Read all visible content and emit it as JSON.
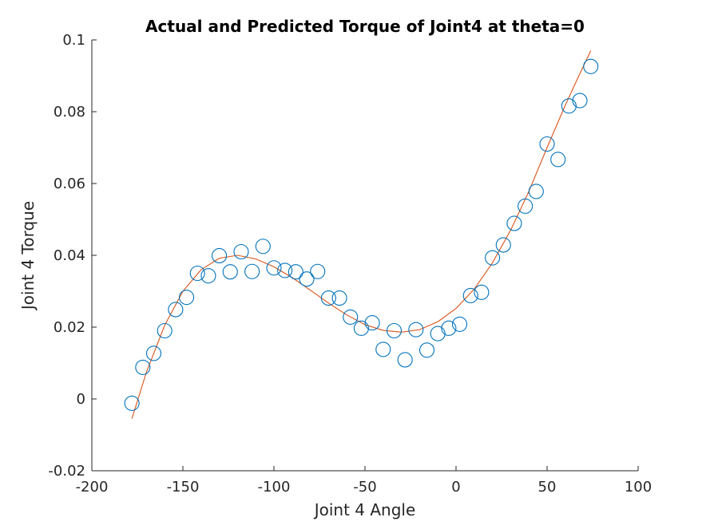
{
  "chart_data": {
    "type": "scatter",
    "title": "Actual and Predicted Torque of Joint4 at theta=0",
    "xlabel": "Joint 4 Angle",
    "ylabel": "Joint 4 Torque",
    "xlim": [
      -200,
      100
    ],
    "ylim": [
      -0.02,
      0.1
    ],
    "x_ticks": [
      "-200",
      "-150",
      "-100",
      "-50",
      "0",
      "50",
      "100"
    ],
    "y_ticks": [
      "-0.02",
      "0",
      "0.02",
      "0.04",
      "0.06",
      "0.08",
      "0.1"
    ],
    "grid": false,
    "legend": "none",
    "colors": {
      "actual": "#0072BD",
      "predicted": "#D95319"
    },
    "series": [
      {
        "kind": "scatter",
        "marker": "circle",
        "points": [
          [
            -178,
            -0.0012
          ],
          [
            -172,
            0.0088
          ],
          [
            -166,
            0.0127
          ],
          [
            -160,
            0.019
          ],
          [
            -154,
            0.0249
          ],
          [
            -148,
            0.0283
          ],
          [
            -142,
            0.035
          ],
          [
            -136,
            0.0343
          ],
          [
            -130,
            0.0399
          ],
          [
            -124,
            0.0354
          ],
          [
            -118,
            0.041
          ],
          [
            -112,
            0.0355
          ],
          [
            -106,
            0.0425
          ],
          [
            -100,
            0.0365
          ],
          [
            -94,
            0.0358
          ],
          [
            -88,
            0.0354
          ],
          [
            -82,
            0.0334
          ],
          [
            -76,
            0.0355
          ],
          [
            -70,
            0.0281
          ],
          [
            -64,
            0.0281
          ],
          [
            -58,
            0.0228
          ],
          [
            -52,
            0.0197
          ],
          [
            -46,
            0.0212
          ],
          [
            -40,
            0.0138
          ],
          [
            -34,
            0.019
          ],
          [
            -28,
            0.0109
          ],
          [
            -22,
            0.0193
          ],
          [
            -16,
            0.0136
          ],
          [
            -10,
            0.0182
          ],
          [
            -4,
            0.0197
          ],
          [
            2,
            0.0208
          ],
          [
            8,
            0.0288
          ],
          [
            14,
            0.0297
          ],
          [
            20,
            0.0393
          ],
          [
            26,
            0.0429
          ],
          [
            32,
            0.0489
          ],
          [
            38,
            0.0537
          ],
          [
            44,
            0.0578
          ],
          [
            50,
            0.071
          ],
          [
            56,
            0.0667
          ],
          [
            62,
            0.0816
          ],
          [
            68,
            0.0831
          ],
          [
            74,
            0.0926
          ]
        ]
      },
      {
        "kind": "line",
        "points": [
          [
            -178,
            -0.0055
          ],
          [
            -170,
            0.0075
          ],
          [
            -160,
            0.0205
          ],
          [
            -150,
            0.03
          ],
          [
            -140,
            0.036
          ],
          [
            -130,
            0.0392
          ],
          [
            -120,
            0.04
          ],
          [
            -110,
            0.039
          ],
          [
            -100,
            0.0368
          ],
          [
            -90,
            0.0338
          ],
          [
            -80,
            0.0303
          ],
          [
            -70,
            0.0267
          ],
          [
            -60,
            0.0234
          ],
          [
            -50,
            0.0207
          ],
          [
            -40,
            0.0191
          ],
          [
            -30,
            0.0186
          ],
          [
            -20,
            0.0193
          ],
          [
            -10,
            0.0215
          ],
          [
            0,
            0.0252
          ],
          [
            10,
            0.0306
          ],
          [
            20,
            0.0379
          ],
          [
            30,
            0.047
          ],
          [
            40,
            0.0578
          ],
          [
            50,
            0.07
          ],
          [
            60,
            0.0818
          ],
          [
            67,
            0.0895
          ],
          [
            74,
            0.097
          ]
        ]
      }
    ]
  }
}
